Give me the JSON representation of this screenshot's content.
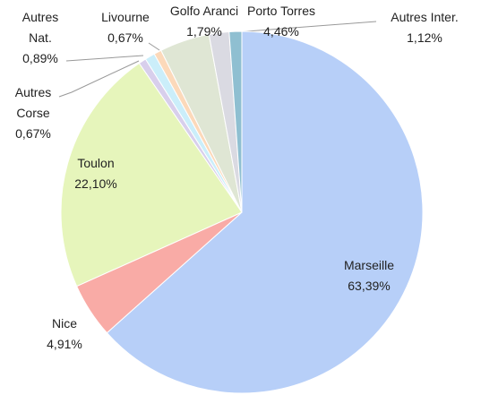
{
  "chart_data": {
    "type": "pie",
    "categories": [
      "Marseille",
      "Nice",
      "Toulon",
      "Autres Corse",
      "Autres Nat.",
      "Livourne",
      "Porto Torres",
      "Golfo Aranci",
      "Autres Inter."
    ],
    "values": [
      63.39,
      4.91,
      22.1,
      0.67,
      0.89,
      0.67,
      4.46,
      1.79,
      1.12
    ],
    "value_labels": [
      "63,39%",
      "4,91%",
      "22,10%",
      "0,67%",
      "0,89%",
      "0,67%",
      "4,46%",
      "1,79%",
      "1,12%"
    ],
    "colors": [
      "#b7cff8",
      "#f9aba6",
      "#e6f5bb",
      "#d8cfec",
      "#cbeefa",
      "#fcd9ba",
      "#dfe6d4",
      "#dadae2",
      "#8fbfd1"
    ]
  }
}
